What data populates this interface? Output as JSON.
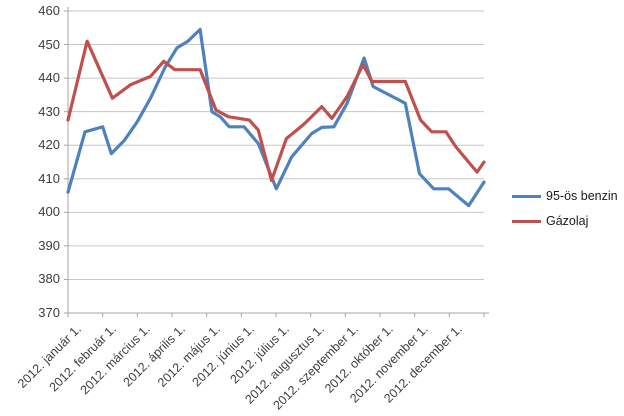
{
  "chart_data": {
    "type": "line",
    "title": "",
    "x_tick_labels": [
      "2012. január 1.",
      "2012. február 1.",
      "2012. március 1.",
      "2012. április 1.",
      "2012. május 1.",
      "2012. június 1.",
      "2012. július 1.",
      "2012. augusztus 1.",
      "2012. szeptember 1.",
      "2012. október 1.",
      "2012. november 1.",
      "2012. december 1."
    ],
    "y_ticks": [
      370,
      380,
      390,
      400,
      410,
      420,
      430,
      440,
      450,
      460
    ],
    "ylim": [
      370,
      460
    ],
    "xlim_months": [
      1,
      13
    ],
    "grid": true,
    "legend_position": "right",
    "series": [
      {
        "name": "95-ös benzin",
        "color": "#4F81BD",
        "points": [
          [
            1.0,
            406
          ],
          [
            1.49,
            424
          ],
          [
            2.0,
            425.5
          ],
          [
            2.25,
            417.5
          ],
          [
            2.63,
            421.5
          ],
          [
            3.0,
            427
          ],
          [
            3.38,
            434
          ],
          [
            3.79,
            443
          ],
          [
            4.14,
            449
          ],
          [
            4.46,
            451
          ],
          [
            4.81,
            454.5
          ],
          [
            5.15,
            430
          ],
          [
            5.39,
            428.5
          ],
          [
            5.65,
            425.5
          ],
          [
            6.08,
            425.5
          ],
          [
            6.49,
            420.5
          ],
          [
            7.01,
            407
          ],
          [
            7.45,
            416.5
          ],
          [
            7.74,
            420
          ],
          [
            8.03,
            423.5
          ],
          [
            8.32,
            425.3
          ],
          [
            8.67,
            425.5
          ],
          [
            9.05,
            432.5
          ],
          [
            9.54,
            446
          ],
          [
            9.8,
            437.5
          ],
          [
            10.73,
            432.5
          ],
          [
            11.14,
            411.5
          ],
          [
            11.55,
            407
          ],
          [
            11.98,
            407
          ],
          [
            12.56,
            402
          ],
          [
            13.0,
            409
          ]
        ]
      },
      {
        "name": "Gázolaj",
        "color": "#C0504D",
        "points": [
          [
            1.0,
            427.5
          ],
          [
            1.55,
            451
          ],
          [
            2.28,
            434
          ],
          [
            2.8,
            438
          ],
          [
            3.38,
            440.5
          ],
          [
            3.76,
            445
          ],
          [
            4.08,
            442.5
          ],
          [
            4.81,
            442.5
          ],
          [
            5.27,
            430.5
          ],
          [
            5.62,
            428.5
          ],
          [
            6.23,
            427.5
          ],
          [
            6.49,
            424.5
          ],
          [
            6.87,
            409.5
          ],
          [
            7.3,
            422
          ],
          [
            7.6,
            424.5
          ],
          [
            7.83,
            426.5
          ],
          [
            8.32,
            431.5
          ],
          [
            8.61,
            428
          ],
          [
            9.05,
            434.5
          ],
          [
            9.51,
            444
          ],
          [
            9.77,
            439
          ],
          [
            10.73,
            439
          ],
          [
            11.17,
            427.5
          ],
          [
            11.49,
            424
          ],
          [
            11.9,
            424
          ],
          [
            12.19,
            419.5
          ],
          [
            12.8,
            412
          ],
          [
            13.0,
            415
          ]
        ]
      }
    ]
  },
  "colors": {
    "background": "#FFFFFF",
    "gridline": "#C6C6C6",
    "axis": "#A6A6A6",
    "label_text": "#3D3D3D"
  }
}
